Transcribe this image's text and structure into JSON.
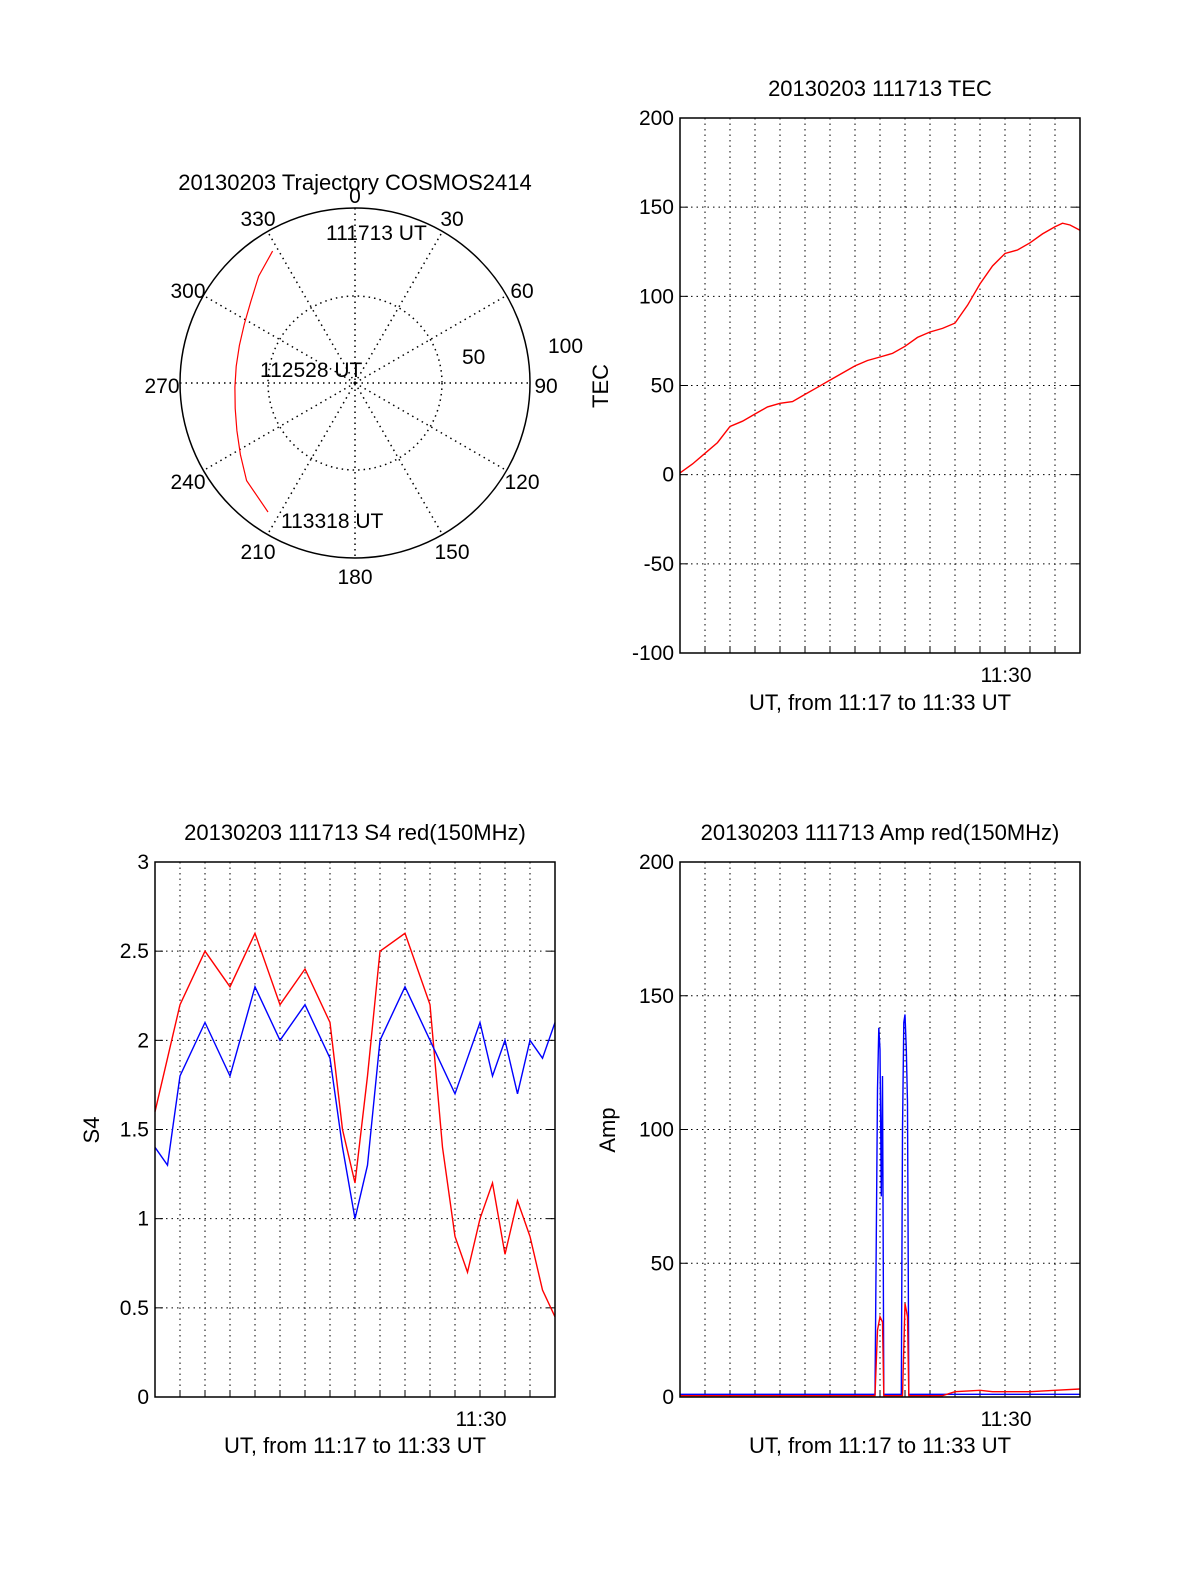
{
  "chart_data": [
    {
      "type": "polar",
      "title": "20130203 Trajectory COSMOS2414",
      "angle_labels": [
        "0",
        "30",
        "60",
        "90",
        "120",
        "150",
        "180",
        "210",
        "240",
        "270",
        "300",
        "330"
      ],
      "radius_labels": [
        "50",
        "100"
      ],
      "grid": true,
      "trajectory": {
        "color": "#ff0000",
        "points": [
          {
            "azimuth": 328,
            "elevation": 10
          },
          {
            "azimuth": 318,
            "elevation": 16
          },
          {
            "azimuth": 308,
            "elevation": 22
          },
          {
            "azimuth": 298,
            "elevation": 25.5
          },
          {
            "azimuth": 288,
            "elevation": 27.5
          },
          {
            "azimuth": 278,
            "elevation": 28.3
          },
          {
            "azimuth": 268,
            "elevation": 28.2
          },
          {
            "azimuth": 258,
            "elevation": 27
          },
          {
            "azimuth": 248,
            "elevation": 24.5
          },
          {
            "azimuth": 238,
            "elevation": 20.5
          },
          {
            "azimuth": 228,
            "elevation": 15
          },
          {
            "azimuth": 214,
            "elevation": 10
          }
        ]
      },
      "annotations": [
        "111713 UT",
        "112528 UT",
        "113318 UT"
      ]
    },
    {
      "type": "line",
      "title": "20130203 111713 TEC",
      "xlabel": "UT, from 11:17 to 11:33 UT",
      "ylabel": "TEC",
      "xtick_label": "11:30",
      "xlim_minutes": [
        0,
        16
      ],
      "ylim": [
        -100,
        200
      ],
      "yticks": [
        "-100",
        "-50",
        "0",
        "50",
        "100",
        "150",
        "200"
      ],
      "grid": true,
      "series": [
        {
          "color": "#ff0000",
          "x": [
            0,
            0.5,
            1,
            1.5,
            2,
            2.5,
            3,
            3.5,
            4,
            4.5,
            5,
            5.5,
            6,
            6.5,
            7,
            7.5,
            8,
            8.5,
            9,
            9.5,
            10,
            10.5,
            11,
            11.5,
            12,
            12.5,
            13,
            13.5,
            14,
            14.5,
            15,
            15.3,
            15.6,
            16
          ],
          "y": [
            1,
            6,
            12,
            18,
            27,
            30,
            34,
            38,
            40,
            41,
            45,
            49,
            53,
            57,
            61,
            64,
            66,
            68,
            72,
            77,
            80,
            82,
            85,
            95,
            107,
            117,
            124,
            126,
            130,
            135,
            139,
            141,
            140,
            137
          ]
        }
      ]
    },
    {
      "type": "line",
      "title": "20130203 111713 S4 red(150MHz)",
      "xlabel": "UT, from 11:17 to 11:33 UT",
      "ylabel": "S4",
      "xtick_label": "11:30",
      "xlim_minutes": [
        0,
        16
      ],
      "ylim": [
        0,
        3
      ],
      "yticks": [
        "0",
        "0.5",
        "1",
        "1.5",
        "2",
        "2.5",
        "3"
      ],
      "grid": true,
      "series": [
        {
          "color": "#ff0000",
          "x": [
            0,
            1,
            2,
            3,
            4,
            5,
            6,
            7,
            7.5,
            8,
            8.5,
            9,
            10,
            11,
            11.5,
            12,
            12.5,
            13,
            13.5,
            14,
            14.5,
            15,
            15.5,
            16
          ],
          "y": [
            1.6,
            2.2,
            2.5,
            2.3,
            2.6,
            2.2,
            2.4,
            2.1,
            1.5,
            1.2,
            1.8,
            2.5,
            2.6,
            2.2,
            1.4,
            0.9,
            0.7,
            1.0,
            1.2,
            0.8,
            1.1,
            0.9,
            0.6,
            0.45
          ]
        },
        {
          "color": "#0000ff",
          "x": [
            0,
            0.5,
            1,
            2,
            3,
            4,
            5,
            6,
            7,
            7.5,
            8,
            8.5,
            9,
            10,
            11,
            12,
            12.5,
            13,
            13.5,
            14,
            14.5,
            15,
            15.5,
            16
          ],
          "y": [
            1.4,
            1.3,
            1.8,
            2.1,
            1.8,
            2.3,
            2.0,
            2.2,
            1.9,
            1.4,
            1.0,
            1.3,
            2.0,
            2.3,
            2.0,
            1.7,
            1.9,
            2.1,
            1.8,
            2.0,
            1.7,
            2.0,
            1.9,
            2.1
          ]
        }
      ]
    },
    {
      "type": "line",
      "title": "20130203 111713 Amp red(150MHz)",
      "xlabel": "UT, from 11:17 to 11:33 UT",
      "ylabel": "Amp",
      "xtick_label": "11:30",
      "xlim_minutes": [
        0,
        16
      ],
      "ylim": [
        0,
        200
      ],
      "yticks": [
        "0",
        "50",
        "100",
        "150",
        "200"
      ],
      "grid": true,
      "series": [
        {
          "color": "#0000ff",
          "x": [
            0,
            7.8,
            7.85,
            7.9,
            7.95,
            8.0,
            8.05,
            8.1,
            8.15,
            8.85,
            8.9,
            8.95,
            9.0,
            9.05,
            9.1,
            9.15,
            16
          ],
          "y": [
            1,
            1,
            60,
            115,
            138,
            130,
            75,
            120,
            1,
            1,
            100,
            140,
            143,
            130,
            110,
            1,
            1
          ]
        },
        {
          "color": "#ff0000",
          "x": [
            0,
            7.8,
            7.9,
            8.0,
            8.1,
            8.15,
            8.9,
            9.0,
            9.1,
            9.15,
            10.5,
            11,
            12,
            12.5,
            13,
            14,
            15,
            16
          ],
          "y": [
            0.5,
            0.5,
            25,
            30,
            28,
            0.5,
            0.5,
            35,
            30,
            0.5,
            0.5,
            2,
            2.5,
            2,
            2,
            2,
            2.5,
            3
          ]
        }
      ]
    }
  ]
}
